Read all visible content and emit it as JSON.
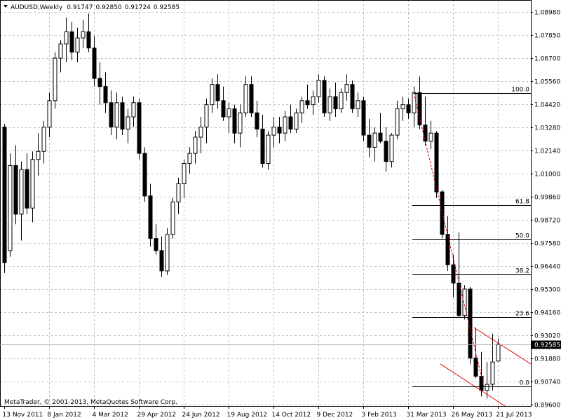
{
  "chart_data": {
    "type": "candlestick",
    "symbol": "AUDUSD,Weekly",
    "header_ohlc": [
      "0.91747",
      "0.92850",
      "0.91724",
      "0.92585"
    ],
    "copyright": "MetaTrader, © 2001-2013, MetaQuotes Software Corp.",
    "categories": [
      "13 Nov 2011",
      null,
      null,
      null,
      null,
      null,
      null,
      null,
      "8 Jan 2012",
      null,
      null,
      null,
      null,
      null,
      null,
      null,
      "4 Mar 2012",
      null,
      null,
      null,
      null,
      null,
      null,
      null,
      "29 Apr 2012",
      null,
      null,
      null,
      null,
      null,
      null,
      null,
      "24 Jun 2012",
      null,
      null,
      null,
      null,
      null,
      null,
      null,
      "19 Aug 2012",
      null,
      null,
      null,
      null,
      null,
      null,
      null,
      "14 Oct 2012",
      null,
      null,
      null,
      null,
      null,
      null,
      null,
      "9 Dec 2012",
      null,
      null,
      null,
      null,
      null,
      null,
      null,
      "3 Feb 2013",
      null,
      null,
      null,
      null,
      null,
      null,
      null,
      "31 Mar 2013",
      null,
      null,
      null,
      null,
      null,
      null,
      null,
      "26 May 2013",
      null,
      null,
      null,
      null,
      null,
      null,
      null,
      "21 Jul 2013"
    ],
    "open": [
      1.033,
      0.972,
      1.014,
      0.99,
      1.012,
      0.993,
      1.017,
      1.021,
      1.033,
      1.046,
      1.067,
      1.074,
      1.08,
      1.07,
      1.077,
      1.08,
      1.072,
      1.057,
      1.053,
      1.045,
      1.033,
      1.045,
      1.032,
      1.038,
      1.045,
      1.02,
      0.999,
      0.978,
      0.972,
      0.962,
      0.98,
      0.996,
      1.005,
      1.015,
      1.02,
      1.028,
      1.033,
      1.044,
      1.054,
      1.046,
      1.038,
      1.042,
      1.03,
      1.04,
      1.054,
      1.04,
      1.032,
      1.015,
      1.029,
      1.033,
      1.03,
      1.038,
      1.032,
      1.04,
      1.046,
      1.044,
      1.048,
      1.056,
      1.04,
      1.048,
      1.042,
      1.05,
      1.054,
      1.042,
      1.046,
      1.029,
      1.023,
      1.03,
      1.026,
      1.016,
      1.029,
      1.042,
      1.044,
      1.04,
      1.05,
      1.034,
      1.026,
      1.03,
      1.001,
      0.98,
      0.965,
      0.956,
      0.94,
      0.953,
      0.919,
      0.91,
      0.903,
      0.906,
      0.91747
    ],
    "high": [
      1.0345,
      1.02,
      1.024,
      1.016,
      1.02,
      1.021,
      1.03,
      1.036,
      1.05,
      1.07,
      1.076,
      1.087,
      1.085,
      1.082,
      1.086,
      1.089,
      1.078,
      1.065,
      1.06,
      1.051,
      1.05,
      1.048,
      1.042,
      1.048,
      1.047,
      1.023,
      1.005,
      0.985,
      0.979,
      0.983,
      0.998,
      1.008,
      1.017,
      1.023,
      1.031,
      1.038,
      1.047,
      1.057,
      1.059,
      1.053,
      1.045,
      1.044,
      1.044,
      1.058,
      1.058,
      1.046,
      1.039,
      1.031,
      1.038,
      1.038,
      1.041,
      1.044,
      1.042,
      1.048,
      1.054,
      1.051,
      1.059,
      1.058,
      1.052,
      1.055,
      1.052,
      1.059,
      1.056,
      1.05,
      1.048,
      1.037,
      1.033,
      1.04,
      1.033,
      1.03,
      1.046,
      1.048,
      1.047,
      1.053,
      1.058,
      1.048,
      1.036,
      1.031,
      1.002,
      0.989,
      0.97,
      0.981,
      0.955,
      0.954,
      0.934,
      0.922,
      0.917,
      0.931,
      0.9285
    ],
    "low": [
      0.961,
      0.969,
      0.985,
      0.977,
      0.99,
      0.986,
      1.009,
      1.015,
      1.028,
      1.042,
      1.06,
      1.065,
      1.066,
      1.065,
      1.072,
      1.07,
      1.053,
      1.044,
      1.04,
      1.029,
      1.027,
      1.029,
      1.025,
      1.033,
      1.017,
      0.996,
      0.974,
      0.97,
      0.959,
      0.96,
      0.978,
      0.99,
      0.998,
      1.01,
      1.015,
      1.02,
      1.025,
      1.04,
      1.042,
      1.036,
      1.03,
      1.025,
      1.023,
      1.038,
      1.038,
      1.028,
      1.013,
      1.012,
      1.023,
      1.025,
      1.026,
      1.03,
      1.03,
      1.035,
      1.042,
      1.039,
      1.045,
      1.038,
      1.036,
      1.038,
      1.04,
      1.046,
      1.04,
      1.038,
      1.026,
      1.018,
      1.016,
      1.025,
      1.011,
      1.013,
      1.027,
      1.036,
      1.037,
      1.033,
      1.032,
      1.024,
      1.022,
      0.998,
      0.978,
      0.962,
      0.949,
      0.939,
      0.938,
      0.916,
      0.909,
      0.9,
      0.899,
      0.903,
      0.91724
    ],
    "close": [
      0.966,
      1.014,
      0.99,
      1.012,
      0.993,
      1.017,
      1.021,
      1.033,
      1.046,
      1.067,
      1.074,
      1.08,
      1.07,
      1.077,
      1.08,
      1.072,
      1.057,
      1.053,
      1.045,
      1.033,
      1.045,
      1.032,
      1.038,
      1.045,
      1.02,
      0.999,
      0.978,
      0.972,
      0.962,
      0.98,
      0.996,
      1.005,
      1.015,
      1.02,
      1.028,
      1.033,
      1.044,
      1.054,
      1.046,
      1.038,
      1.042,
      1.03,
      1.04,
      1.054,
      1.04,
      1.032,
      1.015,
      1.029,
      1.033,
      1.03,
      1.038,
      1.032,
      1.04,
      1.046,
      1.044,
      1.048,
      1.056,
      1.04,
      1.048,
      1.042,
      1.05,
      1.054,
      1.042,
      1.046,
      1.029,
      1.023,
      1.03,
      1.026,
      1.016,
      1.029,
      1.042,
      1.044,
      1.04,
      1.05,
      1.034,
      1.026,
      1.03,
      1.001,
      0.98,
      0.965,
      0.956,
      0.94,
      0.953,
      0.919,
      0.91,
      0.903,
      0.906,
      0.917,
      0.92585
    ],
    "up_color": "#ffffff",
    "down_color": "#000000",
    "ylim": [
      0.8953,
      1.0957
    ],
    "yticks": [
      {
        "value": 1.0898,
        "label": "1.08980"
      },
      {
        "value": 1.0785,
        "label": "1.07850"
      },
      {
        "value": 1.067,
        "label": "1.06700"
      },
      {
        "value": 1.0556,
        "label": "1.05560"
      },
      {
        "value": 1.0442,
        "label": "1.04420"
      },
      {
        "value": 1.0328,
        "label": "1.03280"
      },
      {
        "value": 1.0214,
        "label": "1.02140"
      },
      {
        "value": 1.01,
        "label": "1.01000"
      },
      {
        "value": 0.9986,
        "label": "0.99860"
      },
      {
        "value": 0.9872,
        "label": "0.98720"
      },
      {
        "value": 0.9758,
        "label": "0.97580"
      },
      {
        "value": 0.9644,
        "label": "0.96440"
      },
      {
        "value": 0.953,
        "label": "0.95300"
      },
      {
        "value": 0.9416,
        "label": "0.94160"
      },
      {
        "value": 0.9302,
        "label": "0.93020"
      },
      {
        "value": 0.9188,
        "label": "0.91880"
      },
      {
        "value": 0.9074,
        "label": "0.90740"
      },
      {
        "value": 0.896,
        "label": "0.89600"
      }
    ],
    "current_price": 0.92585,
    "grid": true,
    "fib": {
      "high": 1.0498,
      "low": 0.905,
      "levels": [
        {
          "value": 100,
          "label": "100.0"
        },
        61.8,
        {
          "value": 50,
          "label": "50.0"
        },
        38.2,
        23.6,
        {
          "value": 0,
          "label": "0.0"
        }
      ]
    }
  }
}
